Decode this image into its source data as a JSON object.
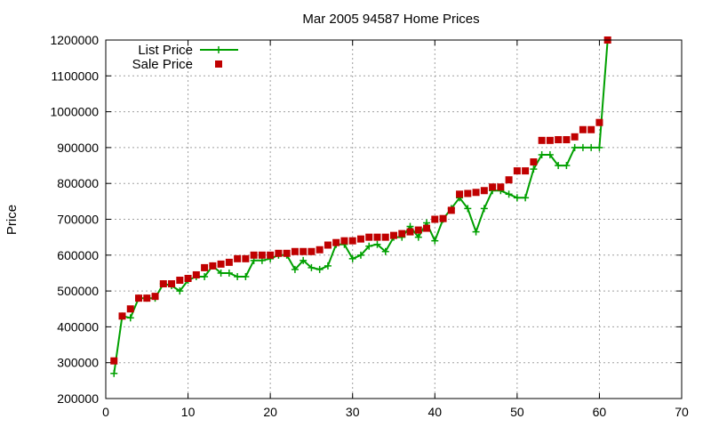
{
  "chart_data": {
    "type": "line",
    "title": "Mar 2005 94587 Home Prices",
    "xlabel": "",
    "ylabel": "Price",
    "xlim": [
      0,
      70
    ],
    "ylim": [
      200000,
      1200000
    ],
    "x_ticks": [
      0,
      10,
      20,
      30,
      40,
      50,
      60,
      70
    ],
    "y_ticks": [
      200000,
      300000,
      400000,
      500000,
      600000,
      700000,
      800000,
      900000,
      1000000,
      1100000,
      1200000
    ],
    "grid": true,
    "legend_position": "top-left",
    "colors": {
      "list": "#00a000",
      "sale": "#c00000"
    },
    "series": [
      {
        "name": "List Price",
        "style": "line-plus",
        "x": [
          1,
          2,
          3,
          4,
          5,
          6,
          7,
          8,
          9,
          10,
          11,
          12,
          13,
          14,
          15,
          16,
          17,
          18,
          19,
          20,
          21,
          22,
          23,
          24,
          25,
          26,
          27,
          28,
          29,
          30,
          31,
          32,
          33,
          34,
          35,
          36,
          37,
          38,
          39,
          40,
          41,
          42,
          43,
          44,
          45,
          46,
          47,
          48,
          49,
          50,
          51,
          52,
          53,
          54,
          55,
          56,
          57,
          58,
          59,
          60,
          61
        ],
        "values": [
          270000,
          430000,
          425000,
          480000,
          480000,
          480000,
          520000,
          515000,
          500000,
          530000,
          540000,
          540000,
          570000,
          550000,
          550000,
          540000,
          540000,
          585000,
          585000,
          590000,
          600000,
          600000,
          560000,
          585000,
          565000,
          560000,
          570000,
          630000,
          630000,
          590000,
          600000,
          625000,
          630000,
          610000,
          650000,
          650000,
          680000,
          650000,
          690000,
          640000,
          700000,
          730000,
          760000,
          730000,
          665000,
          730000,
          780000,
          780000,
          770000,
          760000,
          760000,
          840000,
          880000,
          880000,
          850000,
          850000,
          900000,
          900000,
          900000,
          900000,
          1200000
        ]
      },
      {
        "name": "Sale Price",
        "style": "points-square",
        "x": [
          1,
          2,
          3,
          4,
          5,
          6,
          7,
          8,
          9,
          10,
          11,
          12,
          13,
          14,
          15,
          16,
          17,
          18,
          19,
          20,
          21,
          22,
          23,
          24,
          25,
          26,
          27,
          28,
          29,
          30,
          31,
          32,
          33,
          34,
          35,
          36,
          37,
          38,
          39,
          40,
          41,
          42,
          43,
          44,
          45,
          46,
          47,
          48,
          49,
          50,
          51,
          52,
          53,
          54,
          55,
          56,
          57,
          58,
          59,
          60,
          61
        ],
        "values": [
          305000,
          430000,
          450000,
          480000,
          480000,
          485000,
          520000,
          520000,
          530000,
          535000,
          545000,
          565000,
          570000,
          575000,
          580000,
          590000,
          590000,
          600000,
          600000,
          600000,
          605000,
          605000,
          610000,
          610000,
          610000,
          615000,
          628000,
          635000,
          640000,
          640000,
          645000,
          650000,
          650000,
          650000,
          655000,
          660000,
          665000,
          670000,
          675000,
          700000,
          702000,
          725000,
          770000,
          772000,
          775000,
          780000,
          790000,
          790000,
          810000,
          835000,
          835000,
          860000,
          920000,
          920000,
          922000,
          922000,
          930000,
          950000,
          950000,
          970000,
          1200000
        ]
      }
    ]
  }
}
